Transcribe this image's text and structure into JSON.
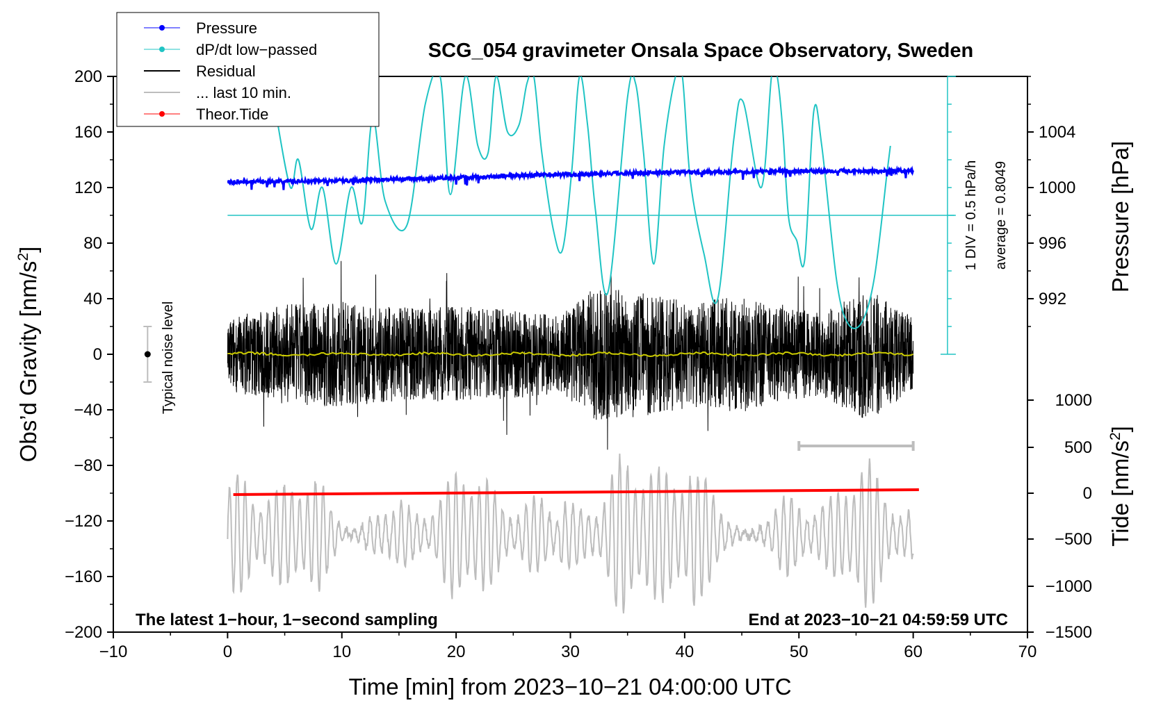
{
  "chart_data": {
    "type": "line",
    "title": "SCG_054 gravimeter Onsala Space Observatory, Sweden",
    "xlabel": "Time [min] from 2023−10−21 04:00:00 UTC",
    "ylabel_main": "Obs’d Gravity [nm/s",
    "ylabel_sup": "2",
    "ylabel_close": "]",
    "y2label_pressure": "Pressure [hPa]",
    "y2label_tide_main": "Tide [nm/s",
    "y2label_tide_sup": "2",
    "y2label_tide_close": "]",
    "xlim": [
      -10,
      70
    ],
    "ylim": [
      -200,
      200
    ],
    "x_ticks": [
      -10,
      0,
      10,
      20,
      30,
      40,
      50,
      60,
      70
    ],
    "x_tick_labels": [
      "−10",
      "0",
      "10",
      "20",
      "30",
      "40",
      "50",
      "60",
      "70"
    ],
    "y_ticks": [
      200,
      160,
      120,
      80,
      40,
      0,
      -40,
      -80,
      -120,
      -160,
      -200
    ],
    "y_tick_labels": [
      "200",
      "160",
      "120",
      "80",
      "40",
      "0",
      "−40",
      "−80",
      "−120",
      "−160",
      "−200"
    ],
    "pressure_axis": {
      "ticks": [
        1004,
        1000,
        996,
        992
      ],
      "labels": [
        "1004",
        "1000",
        "996",
        "992"
      ],
      "gravity_equiv": [
        160,
        120,
        80,
        40
      ]
    },
    "tide_axis": {
      "ticks": [
        1000,
        500,
        0,
        -500,
        -1000,
        -1500
      ],
      "labels": [
        "1000",
        "500",
        "0",
        "−500",
        "−1000",
        "−1500"
      ],
      "gravity_equiv": [
        -33,
        -67,
        -100,
        -133,
        -167,
        -200
      ]
    },
    "legend": [
      "Pressure",
      "dP/dt low−passed",
      "Residual",
      "... last 10 min.",
      "Theor.Tide"
    ],
    "annotations": {
      "left_note": "The latest 1−hour, 1−second sampling",
      "right_note": "End at 2023−10−21 04:59:59 UTC",
      "noise": "Typical noise level",
      "div": "1 DIV = 0.5 hPa/h",
      "avg": "average = 0.8049"
    },
    "colors": {
      "pressure": "#0000ff",
      "dpdt": "#20c4c4",
      "residual": "#000000",
      "last10": "#bdbdbd",
      "tide": "#ff0000",
      "smooth": "#cccc00"
    },
    "series": [
      {
        "name": "Pressure",
        "x": [
          0,
          5,
          10,
          15,
          20,
          25,
          30,
          35,
          40,
          45,
          50,
          55,
          60
        ],
        "y": [
          124,
          124.5,
          125,
          126,
          127,
          128.5,
          129.5,
          130.5,
          131,
          131.5,
          132,
          132,
          132
        ]
      },
      {
        "name": "dP/dt low-passed",
        "x": [
          4.3,
          5.5,
          6.2,
          7.3,
          8.3,
          9.5,
          10.8,
          11.8,
          12.7,
          13.8,
          15.7,
          17.3,
          18.6,
          19.5,
          20.8,
          21.9,
          22.8,
          23.5,
          24.5,
          25.5,
          26.2,
          26.8,
          27.5,
          28.5,
          29.3,
          30.1,
          30.8,
          31.5,
          32.2,
          33.3,
          35.0,
          35.7,
          36.4,
          37.3,
          38.2,
          39.2,
          39.8,
          40.5,
          41.7,
          42.9,
          44.3,
          45.1,
          46.7,
          47.6,
          48.1,
          48.6,
          49.1,
          49.8,
          50.5,
          51.3,
          52.0,
          53.3,
          54.3,
          55.5,
          56.6,
          57.7,
          58.0
        ],
        "y": [
          170,
          120,
          140,
          90,
          120,
          65,
          120,
          95,
          170,
          110,
          93,
          180,
          200,
          115,
          200,
          150,
          145,
          200,
          160,
          165,
          195,
          200,
          145,
          90,
          75,
          130,
          200,
          165,
          103,
          45,
          185,
          195,
          145,
          65,
          150,
          200,
          200,
          125,
          72,
          40,
          155,
          182,
          120,
          200,
          200,
          160,
          98,
          82,
          68,
          175,
          150,
          53,
          22,
          23,
          55,
          130,
          150
        ]
      },
      {
        "name": "Residual",
        "x_range": [
          0,
          60
        ],
        "amplitude_envelope": [
          {
            "x": 0,
            "a": 26
          },
          {
            "x": 5,
            "a": 36
          },
          {
            "x": 10,
            "a": 38
          },
          {
            "x": 14,
            "a": 34
          },
          {
            "x": 20,
            "a": 34
          },
          {
            "x": 25,
            "a": 32
          },
          {
            "x": 29,
            "a": 28
          },
          {
            "x": 32,
            "a": 48
          },
          {
            "x": 36,
            "a": 45
          },
          {
            "x": 41,
            "a": 38
          },
          {
            "x": 45,
            "a": 42
          },
          {
            "x": 48,
            "a": 34
          },
          {
            "x": 52,
            "a": 30
          },
          {
            "x": 56,
            "a": 48
          },
          {
            "x": 60,
            "a": 26
          }
        ]
      },
      {
        "name": "... last 10 min.",
        "x": [
          0,
          60
        ],
        "y": [
          -130,
          -130
        ]
      },
      {
        "name": "Theor.Tide",
        "x": [
          0.5,
          60.5
        ],
        "y": [
          -101,
          -97.5
        ]
      }
    ],
    "last10_marker": {
      "x": [
        50,
        60
      ],
      "y": -66
    },
    "noise_bar": {
      "x": -7,
      "y": [
        20,
        -20
      ]
    }
  }
}
